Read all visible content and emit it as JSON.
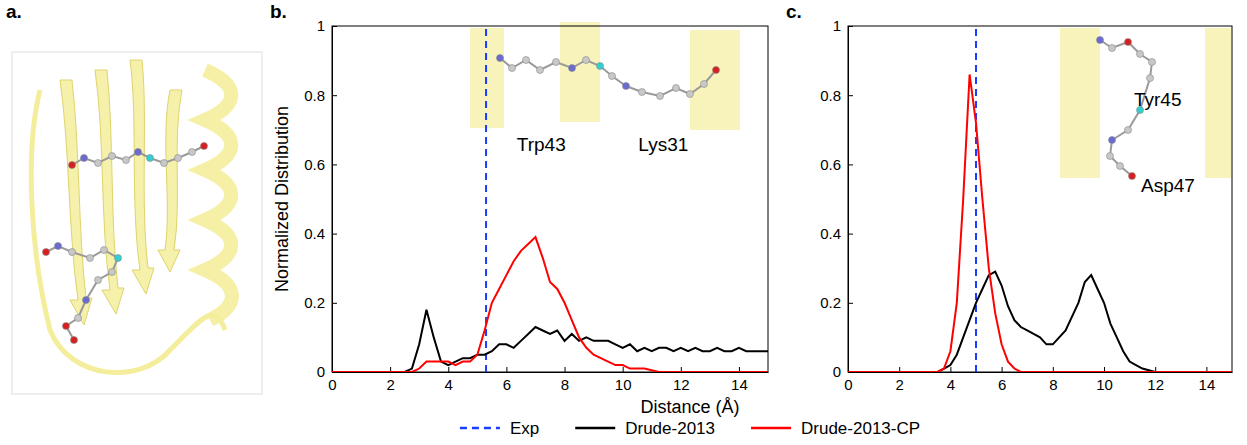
{
  "chart_data": [
    {
      "type": "line",
      "panel_label": "b.",
      "ylabel": "Normalized Distribution",
      "xlim": [
        0,
        15
      ],
      "xticks": [
        0,
        2,
        4,
        6,
        8,
        10,
        12,
        14
      ],
      "ylim": [
        0,
        1
      ],
      "yticks": [
        0,
        0.2,
        0.4,
        0.6,
        0.8,
        1
      ],
      "x": [
        0,
        0.25,
        0.5,
        0.75,
        1,
        1.25,
        1.5,
        1.75,
        2,
        2.25,
        2.5,
        2.75,
        3,
        3.25,
        3.5,
        3.75,
        4,
        4.25,
        4.5,
        4.75,
        5,
        5.25,
        5.5,
        5.75,
        6,
        6.25,
        6.5,
        6.75,
        7,
        7.25,
        7.5,
        7.75,
        8,
        8.25,
        8.5,
        8.75,
        9,
        9.25,
        9.5,
        9.75,
        10,
        10.25,
        10.5,
        10.75,
        11,
        11.25,
        11.5,
        11.75,
        12,
        12.25,
        12.5,
        12.75,
        13,
        13.25,
        13.5,
        13.75,
        14,
        14.25,
        14.5,
        14.75,
        15
      ],
      "reference_line": {
        "name": "Exp",
        "x": 5.3,
        "color": "#1a3cff",
        "line_style": "dashed"
      },
      "series": [
        {
          "name": "Drude-2013",
          "color": "#000000",
          "line_style": "solid",
          "values": [
            0,
            0,
            0,
            0,
            0,
            0,
            0,
            0,
            0,
            0,
            0,
            0.01,
            0.08,
            0.18,
            0.1,
            0.03,
            0.02,
            0.03,
            0.04,
            0.04,
            0.05,
            0.05,
            0.06,
            0.08,
            0.08,
            0.07,
            0.09,
            0.11,
            0.13,
            0.12,
            0.11,
            0.12,
            0.09,
            0.11,
            0.09,
            0.1,
            0.09,
            0.09,
            0.09,
            0.08,
            0.07,
            0.08,
            0.06,
            0.07,
            0.06,
            0.07,
            0.07,
            0.06,
            0.07,
            0.06,
            0.07,
            0.06,
            0.06,
            0.07,
            0.06,
            0.06,
            0.07,
            0.06,
            0.06,
            0.06,
            0.06
          ]
        },
        {
          "name": "Drude-2013-CP",
          "color": "#ff0000",
          "line_style": "solid",
          "values": [
            0,
            0,
            0,
            0,
            0,
            0,
            0,
            0,
            0,
            0,
            0,
            0,
            0.01,
            0.03,
            0.03,
            0.03,
            0.03,
            0.02,
            0.03,
            0.03,
            0.05,
            0.12,
            0.2,
            0.24,
            0.28,
            0.32,
            0.35,
            0.37,
            0.39,
            0.33,
            0.26,
            0.24,
            0.2,
            0.15,
            0.1,
            0.07,
            0.05,
            0.04,
            0.03,
            0.02,
            0.02,
            0.01,
            0.01,
            0.01,
            0.005,
            0,
            0,
            0,
            0,
            0,
            0,
            0,
            0,
            0,
            0,
            0,
            0,
            0,
            0,
            0,
            0
          ]
        }
      ],
      "annotations": [
        {
          "text": "Trp43",
          "x": 7.2,
          "y": 0.64
        },
        {
          "text": "Lys31",
          "x": 11.4,
          "y": 0.64
        }
      ]
    },
    {
      "type": "line",
      "panel_label": "c.",
      "xlim": [
        0,
        15
      ],
      "xticks": [
        0,
        2,
        4,
        6,
        8,
        10,
        12,
        14
      ],
      "ylim": [
        0,
        1
      ],
      "yticks": [
        0,
        0.2,
        0.4,
        0.6,
        0.8,
        1
      ],
      "x": [
        0,
        0.25,
        0.5,
        0.75,
        1,
        1.25,
        1.5,
        1.75,
        2,
        2.25,
        2.5,
        2.75,
        3,
        3.25,
        3.5,
        3.75,
        4,
        4.25,
        4.5,
        4.75,
        5,
        5.25,
        5.5,
        5.75,
        6,
        6.25,
        6.5,
        6.75,
        7,
        7.25,
        7.5,
        7.75,
        8,
        8.25,
        8.5,
        8.75,
        9,
        9.25,
        9.5,
        9.75,
        10,
        10.25,
        10.5,
        10.75,
        11,
        11.25,
        11.5,
        11.75,
        12,
        12.25,
        12.5,
        12.75,
        13,
        13.25,
        13.5,
        13.75,
        14,
        14.25,
        14.5,
        14.75,
        15
      ],
      "reference_line": {
        "x": 5.0,
        "color": "#1a3cff",
        "line_style": "dashed"
      },
      "series": [
        {
          "color": "#000000",
          "line_style": "solid",
          "values": [
            0,
            0,
            0,
            0,
            0,
            0,
            0,
            0,
            0,
            0,
            0,
            0,
            0,
            0,
            0,
            0.01,
            0.02,
            0.05,
            0.1,
            0.15,
            0.2,
            0.24,
            0.28,
            0.29,
            0.25,
            0.19,
            0.15,
            0.13,
            0.12,
            0.11,
            0.1,
            0.08,
            0.08,
            0.1,
            0.12,
            0.16,
            0.2,
            0.26,
            0.28,
            0.24,
            0.2,
            0.14,
            0.1,
            0.06,
            0.03,
            0.02,
            0.01,
            0.005,
            0,
            0,
            0,
            0,
            0,
            0,
            0,
            0,
            0,
            0,
            0,
            0,
            0
          ]
        },
        {
          "color": "#ff0000",
          "line_style": "solid",
          "values": [
            0,
            0,
            0,
            0,
            0,
            0,
            0,
            0,
            0,
            0,
            0,
            0,
            0,
            0,
            0,
            0.01,
            0.06,
            0.2,
            0.5,
            0.86,
            0.72,
            0.5,
            0.3,
            0.17,
            0.08,
            0.03,
            0.01,
            0,
            0,
            0,
            0,
            0,
            0,
            0,
            0,
            0,
            0,
            0,
            0,
            0,
            0,
            0,
            0,
            0,
            0,
            0,
            0,
            0,
            0,
            0,
            0,
            0,
            0,
            0,
            0,
            0,
            0,
            0,
            0,
            0,
            0
          ]
        }
      ],
      "annotations": [
        {
          "text": "Tyr45",
          "x": 12.1,
          "y": 0.77
        },
        {
          "text": "Asp47",
          "x": 12.5,
          "y": 0.52
        }
      ]
    }
  ],
  "figure": {
    "panel_a_label": "a.",
    "xlabel": "Distance (Å)",
    "legend": "bottom"
  }
}
